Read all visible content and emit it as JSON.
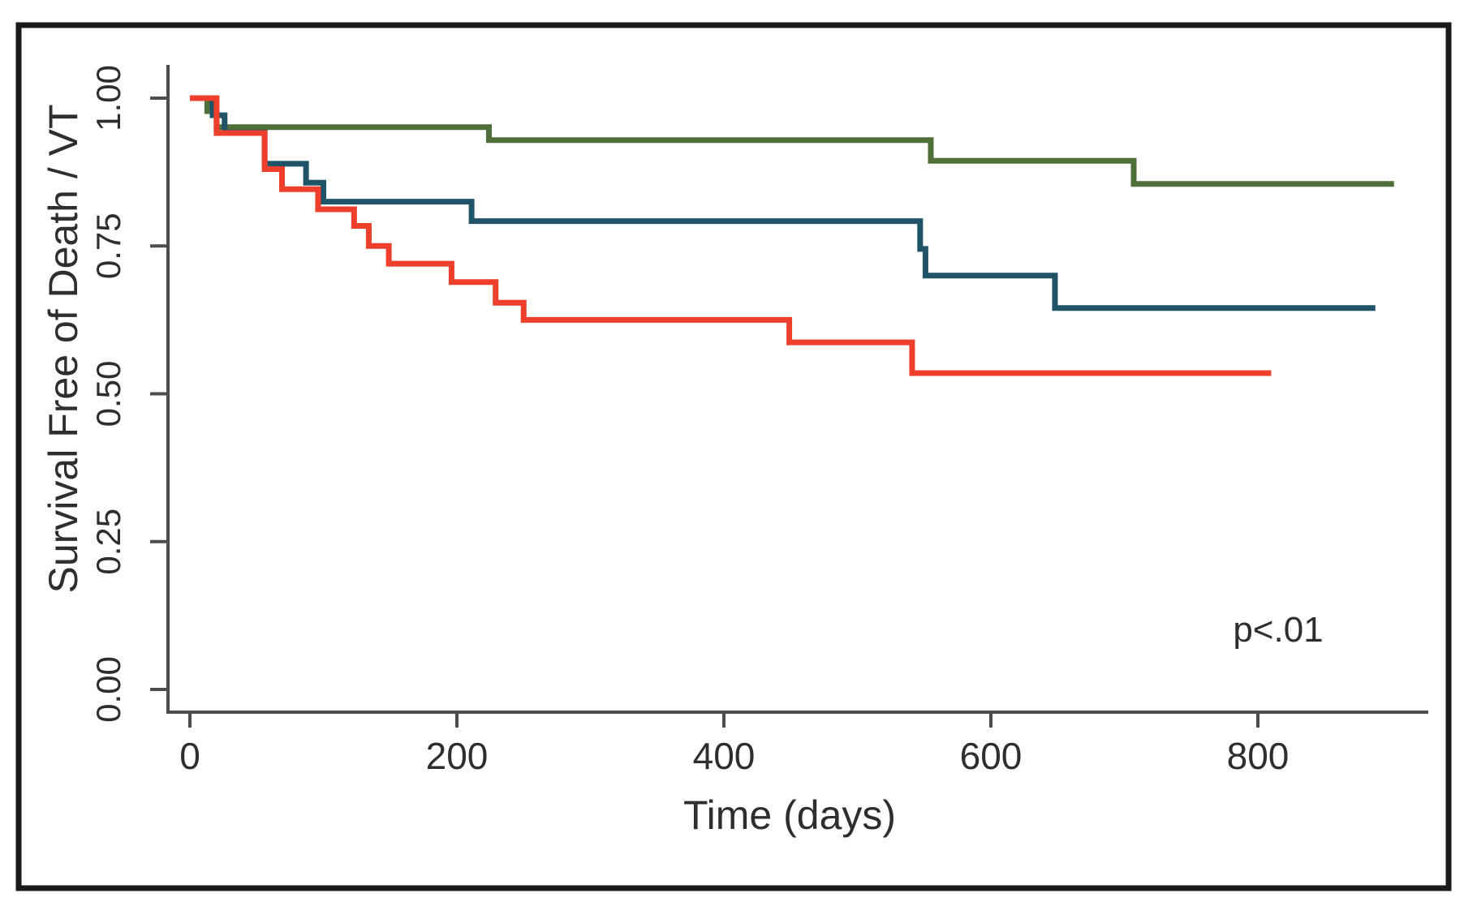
{
  "figure": {
    "kind": "kaplan-meier-survival-plot",
    "annotation": "p<.01"
  },
  "colors": {
    "series_green": "#4e7038",
    "series_blue": "#1f5468",
    "series_red": "#ed3f2b",
    "axis": "#4d4d4d",
    "text": "#2e2e2e",
    "border": "#1a1a1a",
    "background": "#ffffff"
  },
  "chart_data": {
    "type": "line",
    "subtype": "step-survival-curves",
    "title": "",
    "xlabel": "Time (days)",
    "ylabel": "Survival Free of Death / VT",
    "annotation": "p<.01",
    "grid": false,
    "legend_position": "none",
    "xlim": [
      0,
      920
    ],
    "ylim": [
      0.0,
      1.0
    ],
    "x_ticks": [
      {
        "value": 0,
        "label": "0"
      },
      {
        "value": 200,
        "label": "200"
      },
      {
        "value": 400,
        "label": "400"
      },
      {
        "value": 600,
        "label": "600"
      },
      {
        "value": 800,
        "label": "800"
      }
    ],
    "y_ticks": [
      {
        "value": 0.0,
        "label": "0.00"
      },
      {
        "value": 0.25,
        "label": "0.25"
      },
      {
        "value": 0.5,
        "label": "0.50"
      },
      {
        "value": 0.75,
        "label": "0.75"
      },
      {
        "value": 1.0,
        "label": "1.00"
      }
    ],
    "series": [
      {
        "name": "group-green-upper",
        "color_key": "series_green",
        "end_time": 902,
        "points": [
          [
            0,
            1.0
          ],
          [
            13,
            0.978
          ],
          [
            20,
            0.951
          ],
          [
            224,
            0.929
          ],
          [
            555,
            0.894
          ],
          [
            707,
            0.855
          ]
        ]
      },
      {
        "name": "group-blue-middle",
        "color_key": "series_blue",
        "end_time": 888,
        "points": [
          [
            0,
            1.0
          ],
          [
            17,
            0.971
          ],
          [
            26,
            0.942
          ],
          [
            56,
            0.889
          ],
          [
            87,
            0.857
          ],
          [
            100,
            0.825
          ],
          [
            211,
            0.792
          ],
          [
            547,
            0.745
          ],
          [
            551,
            0.7
          ],
          [
            648,
            0.645
          ]
        ]
      },
      {
        "name": "group-red-lower",
        "color_key": "series_red",
        "end_time": 810,
        "points": [
          [
            0,
            1.0
          ],
          [
            20,
            0.941
          ],
          [
            56,
            0.88
          ],
          [
            69,
            0.846
          ],
          [
            96,
            0.812
          ],
          [
            123,
            0.784
          ],
          [
            134,
            0.75
          ],
          [
            149,
            0.72
          ],
          [
            196,
            0.689
          ],
          [
            229,
            0.654
          ],
          [
            250,
            0.625
          ],
          [
            449,
            0.587
          ],
          [
            541,
            0.535
          ]
        ]
      }
    ]
  }
}
